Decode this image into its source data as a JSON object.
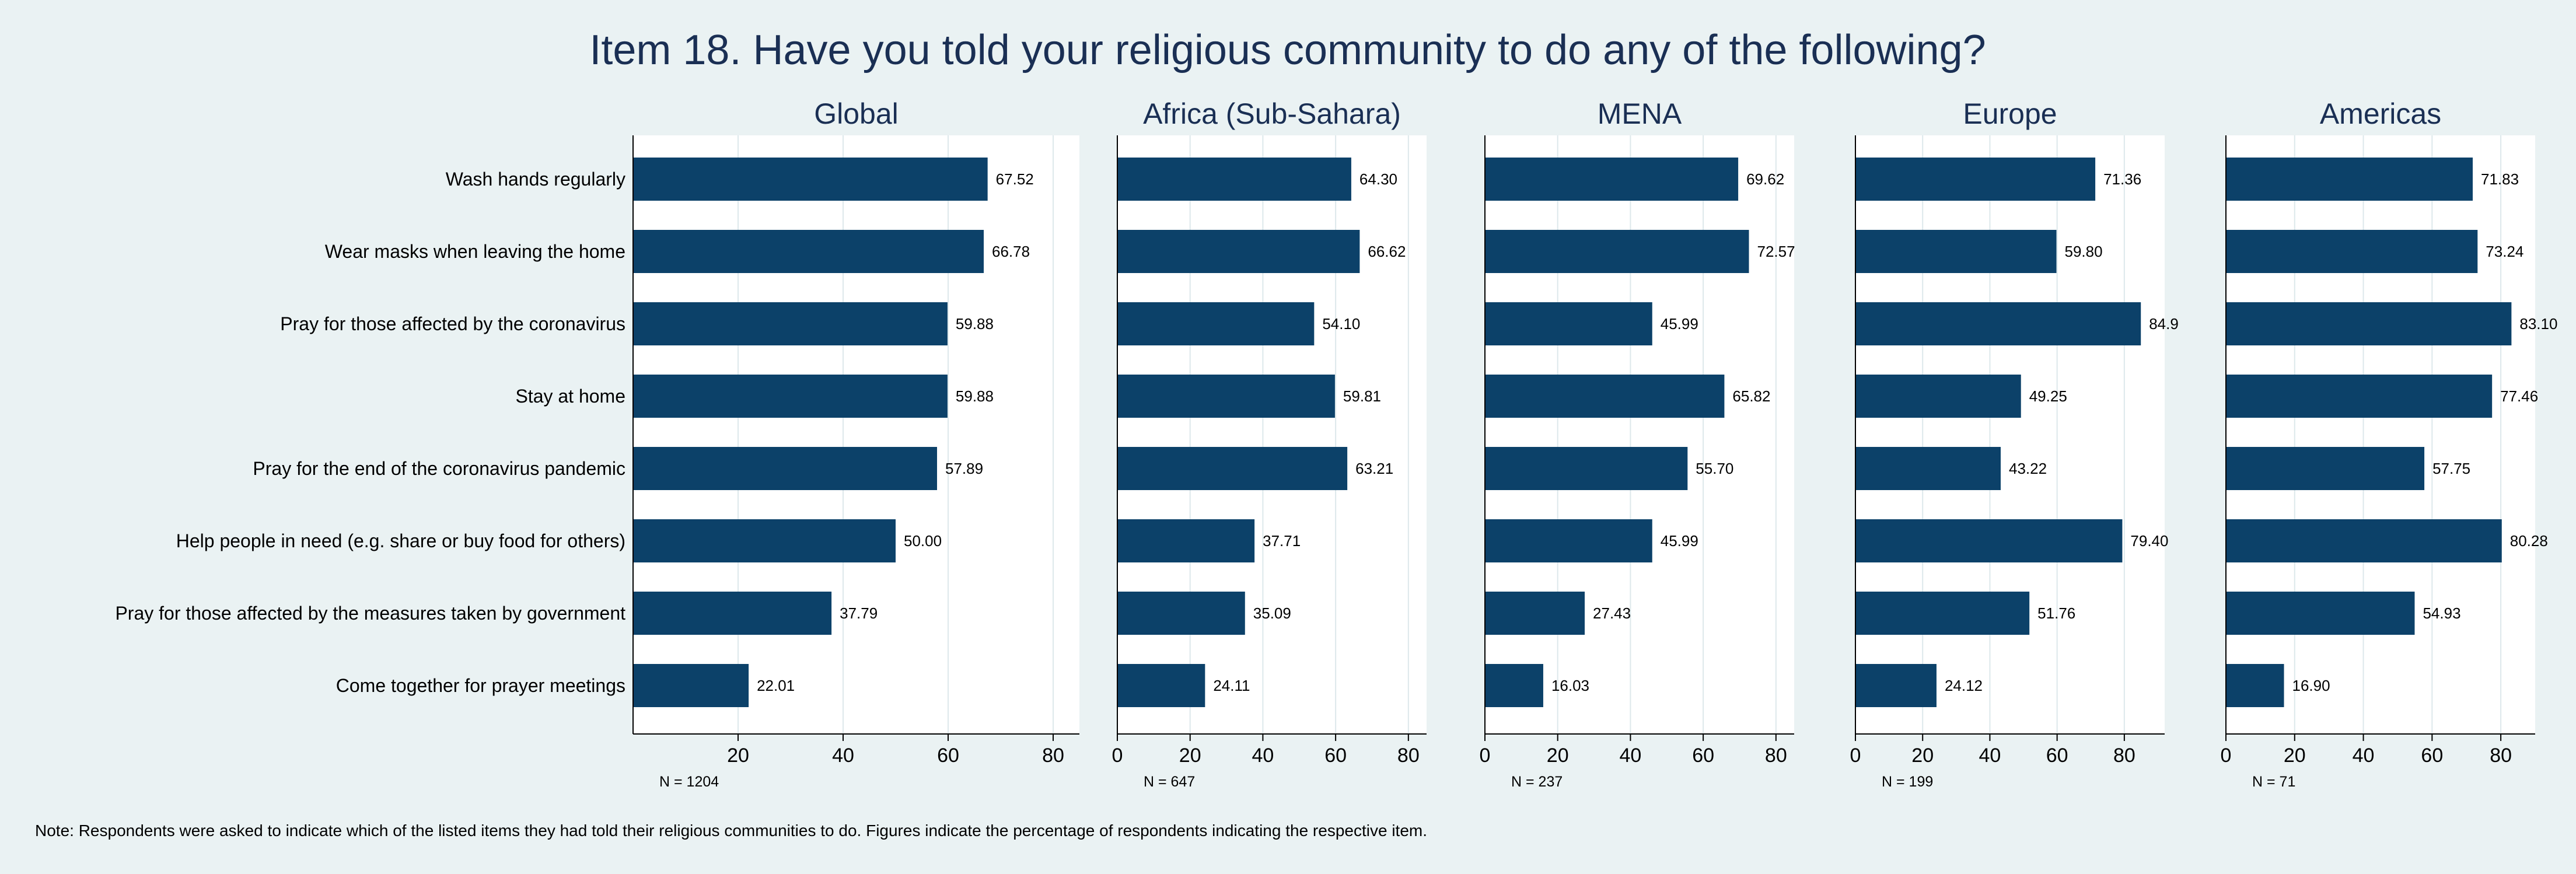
{
  "chart_data": {
    "type": "bar",
    "orientation": "horizontal",
    "title": "Item 18. Have you told your religious community to do any of the following?",
    "categories": [
      "Wash hands regularly",
      "Wear masks when leaving the home",
      "Pray for those affected by the coronavirus",
      "Stay at home",
      "Pray for the end of the coronavirus pandemic",
      "Help people in need (e.g. share or buy food for others)",
      "Pray for those affected by the measures taken by government",
      "Come together for prayer meetings"
    ],
    "panels": [
      {
        "name": "Global",
        "n_label": "N = 1204",
        "xlim": [
          0,
          85
        ],
        "ticks": [
          20,
          40,
          60,
          80
        ],
        "values": [
          67.52,
          66.78,
          59.88,
          59.88,
          57.89,
          50.0,
          37.79,
          22.01
        ],
        "labels": [
          "67.52",
          "66.78",
          "59.88",
          "59.88",
          "57.89",
          "50.00",
          "37.79",
          "22.01"
        ]
      },
      {
        "name": "Africa (Sub-Sahara)",
        "n_label": "N = 647",
        "xlim": [
          0,
          85
        ],
        "ticks": [
          0,
          20,
          40,
          60,
          80
        ],
        "values": [
          64.3,
          66.62,
          54.1,
          59.81,
          63.21,
          37.71,
          35.09,
          24.11
        ],
        "labels": [
          "64.30",
          "66.62",
          "54.10",
          "59.81",
          "63.21",
          "37.71",
          "35.09",
          "24.11"
        ]
      },
      {
        "name": "MENA",
        "n_label": "N = 237",
        "xlim": [
          0,
          85
        ],
        "ticks": [
          0,
          20,
          40,
          60,
          80
        ],
        "values": [
          69.62,
          72.57,
          45.99,
          65.82,
          55.7,
          45.99,
          27.43,
          16.03
        ],
        "labels": [
          "69.62",
          "72.57",
          "45.99",
          "65.82",
          "55.70",
          "45.99",
          "27.43",
          "16.03"
        ]
      },
      {
        "name": "Europe",
        "n_label": "N = 199",
        "xlim": [
          0,
          92
        ],
        "ticks": [
          0,
          20,
          40,
          60,
          80
        ],
        "values": [
          71.36,
          59.8,
          84.92,
          49.25,
          43.22,
          79.4,
          51.76,
          24.12
        ],
        "labels": [
          "71.36",
          "59.80",
          "84.9",
          "49.25",
          "43.22",
          "79.40",
          "51.76",
          "24.12"
        ]
      },
      {
        "name": "Americas",
        "n_label": "N = 71",
        "xlim": [
          0,
          90
        ],
        "ticks": [
          0,
          20,
          40,
          60,
          80
        ],
        "values": [
          71.83,
          73.24,
          83.1,
          77.46,
          57.75,
          80.28,
          54.93,
          16.9
        ],
        "labels": [
          "71.83",
          "73.24",
          "83.10",
          "77.46",
          "57.75",
          "80.28",
          "54.93",
          "16.90"
        ]
      }
    ],
    "note": "Note: Respondents were asked to indicate which of the listed items they had told their religious communities to do. Figures indicate the percentage of respondents indicating the respective item."
  },
  "colors": {
    "bar": "#0c4169",
    "background": "#eaf2f3",
    "plot_background": "#ffffff",
    "title": "#1a2f54"
  }
}
